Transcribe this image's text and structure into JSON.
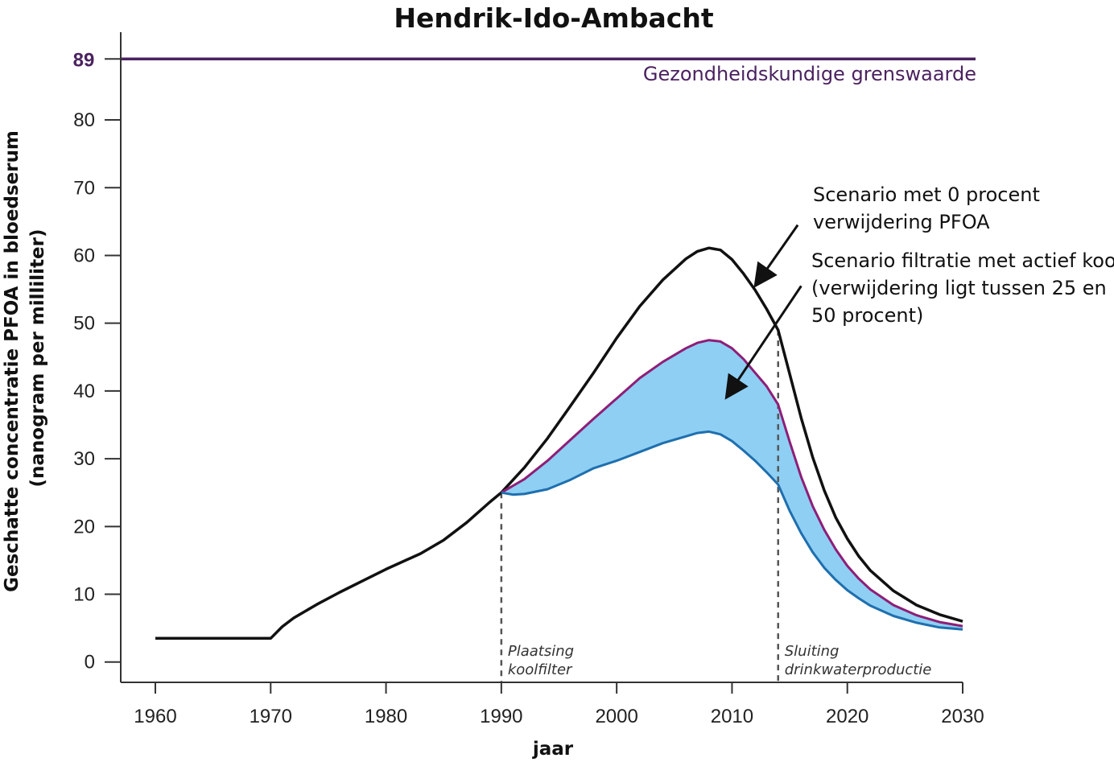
{
  "chart_data": {
    "type": "line",
    "title": "Hendrik-Ido-Ambacht",
    "xlabel": "jaar",
    "ylabel": [
      "Geschatte concentratie PFOA in bloedserum",
      "(nanogram per milliliter)"
    ],
    "xlim": [
      1957,
      2030
    ],
    "ylim": [
      -3,
      92
    ],
    "x_ticks": [
      1960,
      1970,
      1980,
      1990,
      2000,
      2010,
      2020,
      2030
    ],
    "y_ticks": [
      0,
      10,
      20,
      30,
      40,
      50,
      60,
      70,
      80
    ],
    "grid": false,
    "threshold": {
      "value": 89,
      "value_label": "89",
      "label": "Gezondheidskundige grenswaarde",
      "color": "#4b2260",
      "x_range": [
        1957,
        2031
      ]
    },
    "series": [
      {
        "key": "scenario_0",
        "color": "#111111",
        "x": [
          1960,
          1965,
          1970,
          1971,
          1972,
          1974,
          1976,
          1978,
          1980,
          1983,
          1985,
          1987,
          1989,
          1990,
          1992,
          1994,
          1996,
          1998,
          2000,
          2002,
          2004,
          2006,
          2007,
          2008,
          2009,
          2010,
          2011,
          2012,
          2013,
          2014,
          2015,
          2016,
          2017,
          2018,
          2019,
          2020,
          2021,
          2022,
          2024,
          2026,
          2028,
          2030
        ],
        "y": [
          3.5,
          3.5,
          3.5,
          5.2,
          6.5,
          8.5,
          10.3,
          12.0,
          13.7,
          16.0,
          18.0,
          20.6,
          23.6,
          25.0,
          28.7,
          33.0,
          37.8,
          42.7,
          47.8,
          52.5,
          56.4,
          59.5,
          60.6,
          61.1,
          60.8,
          59.4,
          57.3,
          54.9,
          52.1,
          49.0,
          42.5,
          36.0,
          30.2,
          25.3,
          21.3,
          18.2,
          15.6,
          13.5,
          10.5,
          8.4,
          7.0,
          6.0
        ]
      },
      {
        "key": "scenario_filtration_high",
        "color": "#8e1e77",
        "x": [
          1990,
          1992,
          1994,
          1996,
          1998,
          2000,
          2002,
          2004,
          2006,
          2007,
          2008,
          2009,
          2010,
          2011,
          2012,
          2013,
          2014,
          2015,
          2016,
          2017,
          2018,
          2019,
          2020,
          2021,
          2022,
          2024,
          2026,
          2028,
          2030
        ],
        "y": [
          25.0,
          27.0,
          29.7,
          32.8,
          35.9,
          38.9,
          41.9,
          44.3,
          46.3,
          47.1,
          47.5,
          47.3,
          46.3,
          44.7,
          42.7,
          40.7,
          38.0,
          32.5,
          27.3,
          23.0,
          19.5,
          16.6,
          14.2,
          12.3,
          10.7,
          8.4,
          6.9,
          5.9,
          5.3
        ]
      },
      {
        "key": "scenario_filtration_low",
        "color": "#1f6fae",
        "x": [
          1990,
          1991,
          1992,
          1994,
          1996,
          1998,
          2000,
          2002,
          2004,
          2006,
          2007,
          2008,
          2009,
          2010,
          2011,
          2012,
          2013,
          2014,
          2015,
          2016,
          2017,
          2018,
          2019,
          2020,
          2021,
          2022,
          2024,
          2026,
          2028,
          2030
        ],
        "y": [
          25.0,
          24.7,
          24.8,
          25.5,
          26.9,
          28.6,
          29.7,
          31.0,
          32.3,
          33.3,
          33.8,
          34.0,
          33.6,
          32.6,
          31.2,
          29.7,
          28.0,
          26.2,
          22.3,
          19.0,
          16.2,
          13.9,
          12.1,
          10.6,
          9.4,
          8.3,
          6.8,
          5.8,
          5.1,
          4.8
        ]
      }
    ],
    "band": {
      "between": [
        "scenario_filtration_high",
        "scenario_filtration_low"
      ],
      "color": "#8ecff3"
    },
    "events": [
      {
        "x": 1990,
        "label": [
          "Plaatsing",
          "koolfilter"
        ]
      },
      {
        "x": 2014,
        "label": [
          "Sluiting",
          "drinkwaterproductie"
        ]
      }
    ],
    "annotations": [
      {
        "key": "zero",
        "lines": [
          "Scenario met 0 procent",
          "verwijdering PFOA"
        ],
        "arrow_from": [
          2015.7,
          64.5
        ],
        "arrow_to": [
          2012.0,
          55.5
        ]
      },
      {
        "key": "filtration",
        "lines": [
          "Scenario filtratie met actief kool",
          "(verwijdering ligt tussen 25 en",
          "50 procent)"
        ],
        "arrow_from": [
          2016.0,
          55.5
        ],
        "arrow_to": [
          2009.5,
          39.0
        ]
      }
    ],
    "axis_color": "#333333"
  }
}
